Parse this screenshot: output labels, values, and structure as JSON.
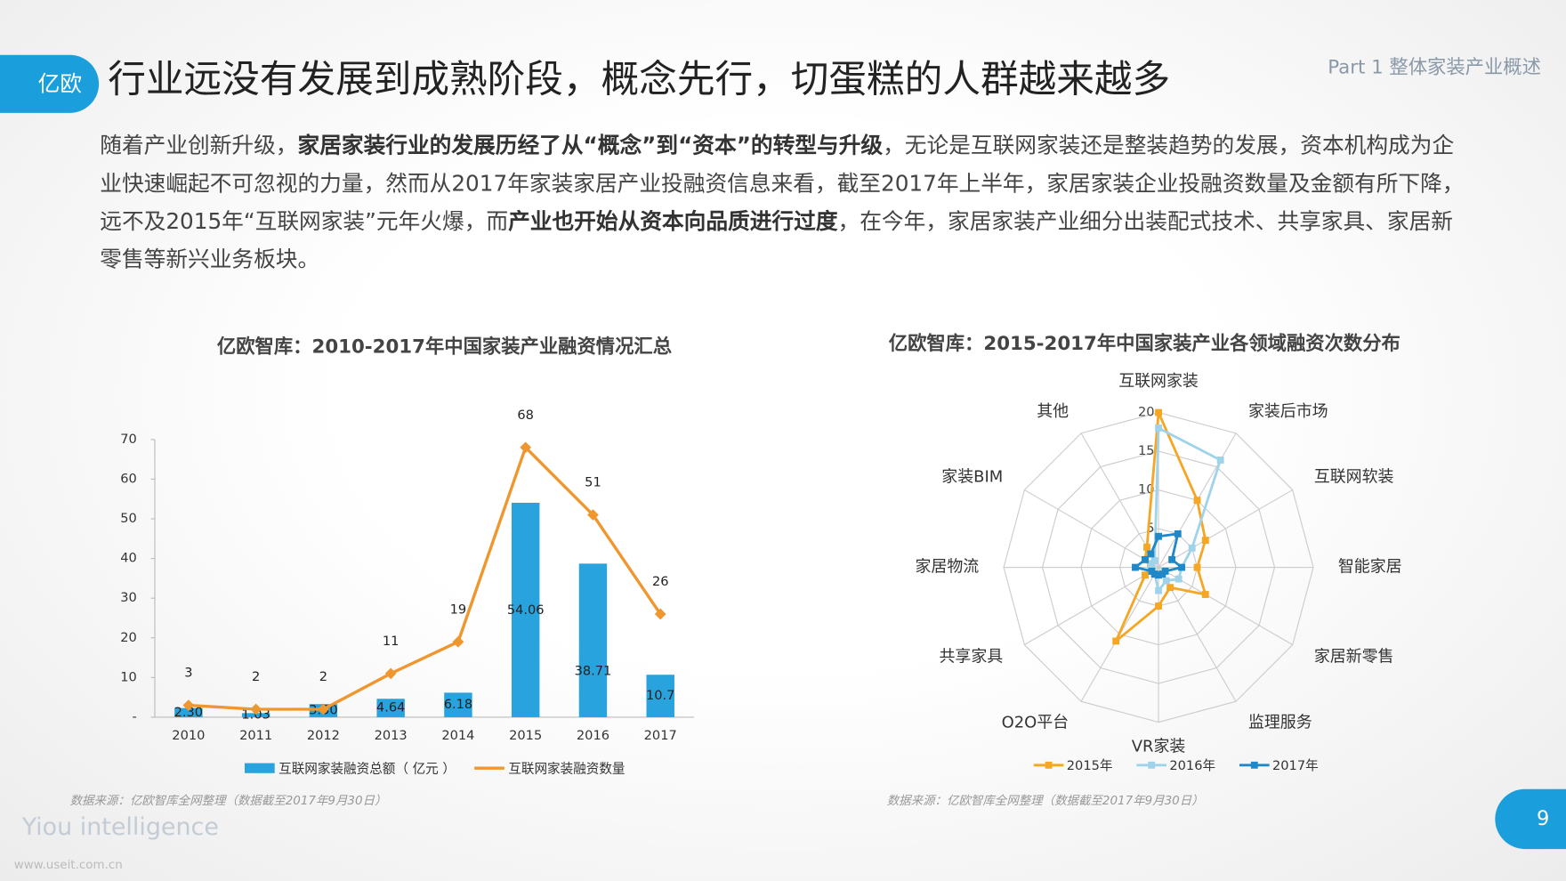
{
  "header": {
    "logo": "亿欧",
    "title": "行业远没有发展到成熟阶段，概念先行，切蛋糕的人群越来越多",
    "part": "Part 1 整体家装产业概述"
  },
  "body": {
    "runs": [
      {
        "text": "随着产业创新升级，",
        "bold": false
      },
      {
        "text": "家居家装行业的发展历经了从“概念”到“资本”的转型与升级",
        "bold": true
      },
      {
        "text": "，无论是互联网家装还是整装趋势的发展，资本机构成为企业快速崛起不可忽视的力量，然而从2017年家装家居产业投融资信息来看，截至2017年上半年，家居家装企业投融资数量及金额有所下降，远不及2015年“互联网家装”元年火爆，而",
        "bold": false
      },
      {
        "text": "产业也开始从资本向品质进行过度",
        "bold": true
      },
      {
        "text": "，在今年，家居家装产业细分出装配式技术、共享家具、家居新零售等新兴业务板块。",
        "bold": false
      }
    ]
  },
  "chart_data": [
    {
      "type": "bar",
      "title": "亿欧智库：2010-2017年中国家装产业融资情况汇总",
      "categories": [
        "2010",
        "2011",
        "2012",
        "2013",
        "2014",
        "2015",
        "2016",
        "2017"
      ],
      "series": [
        {
          "name": "互联网家装融资总额（ 亿元 ）",
          "type": "bar",
          "color": "#29a3dd",
          "values": [
            2.3,
            1.03,
            3.3,
            4.64,
            6.18,
            54.06,
            38.71,
            10.7
          ],
          "value_labels": [
            "2.30",
            "1.03",
            "3.30",
            "4.64",
            "6.18",
            "54.06",
            "38.71",
            "10.7"
          ]
        },
        {
          "name": "互联网家装融资数量",
          "type": "line",
          "color": "#f0962e",
          "values": [
            3,
            2,
            2,
            11,
            19,
            68,
            51,
            26
          ]
        }
      ],
      "ylim": [
        0,
        70
      ],
      "yticks": [
        {
          "value": 0,
          "label": "-"
        },
        10,
        20,
        30,
        40,
        50,
        60,
        70
      ],
      "source": "数据来源：亿欧智库全网整理（数据截至2017年9月30日）"
    },
    {
      "type": "radar",
      "title": "亿欧智库：2015-2017年中国家装产业各领域融资次数分布",
      "categories": [
        "互联网家装",
        "家装后市场",
        "互联网软装",
        "智能家居",
        "家居新零售",
        "监理服务",
        "VR家装",
        "O2O平台",
        "共享家具",
        "家居物流",
        "家装BIM",
        "其他"
      ],
      "series": [
        {
          "name": "2015年",
          "color": "#f5a623",
          "values": [
            20,
            10,
            7,
            5,
            7,
            3,
            5,
            11,
            2,
            1,
            2,
            3
          ]
        },
        {
          "name": "2016年",
          "color": "#9fd3ea",
          "values": [
            18,
            16,
            5,
            3,
            3,
            2,
            3,
            1,
            1,
            1,
            1,
            1
          ]
        },
        {
          "name": "2017年",
          "color": "#1e88c8",
          "values": [
            4,
            5,
            2,
            3,
            1,
            1,
            1,
            1,
            1,
            3,
            2,
            2
          ]
        }
      ],
      "ylim": [
        0,
        20
      ],
      "yticks": [
        0,
        5,
        10,
        15,
        20
      ],
      "source": "数据来源：亿欧智库全网整理（数据截至2017年9月30日）"
    }
  ],
  "footer": {
    "brand": "Yiou intelligence",
    "page": "9",
    "watermark": "www.useit.com.cn"
  }
}
